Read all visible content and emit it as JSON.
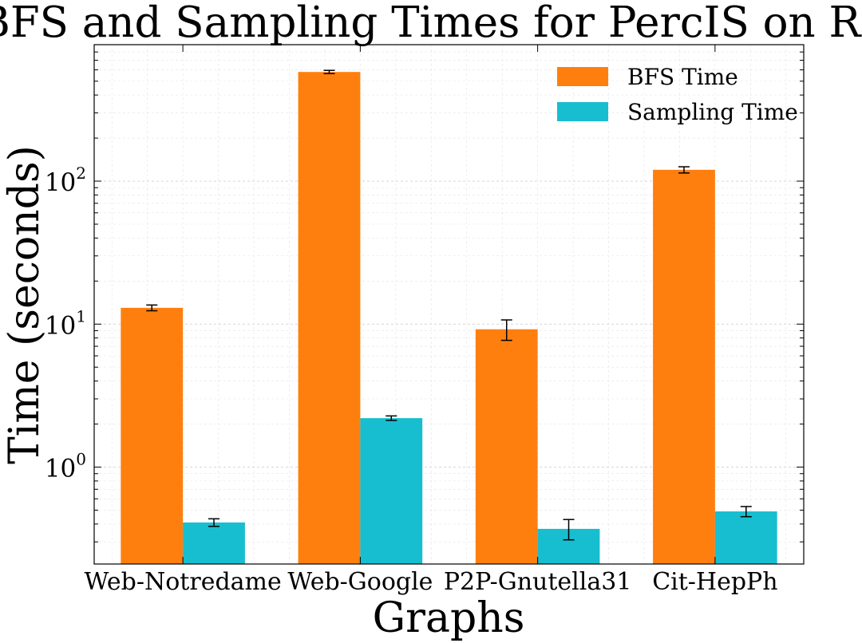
{
  "chart_data": {
    "type": "bar",
    "title": "BFS and Sampling Times for PercIS on RSS",
    "xlabel": "Graphs",
    "ylabel": "Time (seconds)",
    "yscale": "log",
    "ylim": [
      0.21,
      900
    ],
    "categories": [
      "Web-Notredame",
      "Web-Google",
      "P2P-Gnutella31",
      "Cit-HepPh"
    ],
    "series": [
      {
        "name": "BFS Time",
        "color": "#ff7f0e",
        "values": [
          13.0,
          580.0,
          9.2,
          120.0
        ],
        "errors": [
          0.6,
          15.0,
          1.5,
          6.0
        ]
      },
      {
        "name": "Sampling Time",
        "color": "#17becf",
        "values": [
          0.41,
          2.2,
          0.37,
          0.49
        ],
        "errors": [
          0.025,
          0.08,
          0.06,
          0.04
        ]
      }
    ],
    "yticks": [
      {
        "value": 1,
        "base": "10",
        "exp": "0"
      },
      {
        "value": 10,
        "base": "10",
        "exp": "1"
      },
      {
        "value": 100,
        "base": "10",
        "exp": "2"
      }
    ],
    "grid": true,
    "legend_position": "top-right"
  }
}
